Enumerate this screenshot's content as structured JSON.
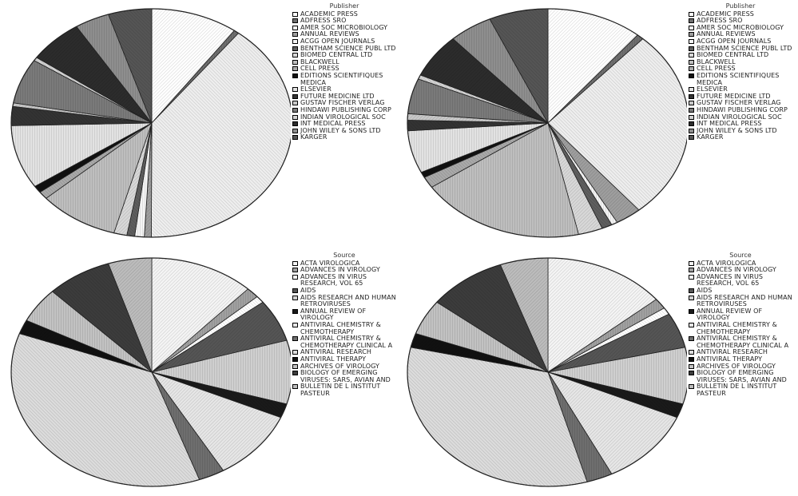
{
  "chart_data": [
    {
      "type": "pie",
      "legend_title": "Publisher",
      "legend_position": "right",
      "categories": [
        "ACADEMIC PRESS",
        "ADFRESS SRO",
        "AMER SOC MICROBIOLOGY",
        "ANNUAL REVIEWS",
        "ACGG OPEN JOURNALS",
        "BENTHAM SCIENCE PUBL LTD",
        "BIOMED CENTRAL LTD",
        "BLACKWELL",
        "CELL PRESS",
        "EDITIONS SCIENTIFIQUES MEDICA",
        "ELSEVIER",
        "FUTURE MEDICINE LTD",
        "GUSTAV FISCHER VERLAG",
        "HINDAWI PUBLISHING CORP",
        "INDIAN VIROLOGICAL SOC",
        "INT MEDICAL PRESS",
        "JOHN WILEY & SONS LTD",
        "KARGER"
      ],
      "values": [
        10.0,
        0.6,
        39.5,
        0.8,
        1.1,
        0.9,
        1.5,
        9.2,
        1.1,
        1.0,
        9.0,
        2.7,
        0.5,
        6.4,
        0.5,
        6.3,
        4.0,
        5.0
      ],
      "colors": [
        "#ffffff",
        "#6e6e6e",
        "#eeeeee",
        "#9e9e9e",
        "#f4f4f4",
        "#5e5e5e",
        "#d8d8d8",
        "#bebebe",
        "#a9a9a9",
        "#111111",
        "#e2e2e2",
        "#333333",
        "#c8c8c8",
        "#7a7a7a",
        "#d2d2d2",
        "#2c2c2c",
        "#8e8e8e",
        "#555555"
      ]
    },
    {
      "type": "pie",
      "legend_title": "Publisher",
      "legend_position": "right",
      "categories": [
        "ACADEMIC PRESS",
        "ADFRESS SRO",
        "AMER SOC MICROBIOLOGY",
        "ANNUAL REVIEWS",
        "ACGG OPEN JOURNALS",
        "BENTHAM SCIENCE PUBL LTD",
        "BIOMED CENTRAL LTD",
        "BLACKWELL",
        "CELL PRESS",
        "EDITIONS SCIENTIFIQUES MEDICA",
        "ELSEVIER",
        "FUTURE MEDICINE LTD",
        "GUSTAV FISCHER VERLAG",
        "HINDAWI PUBLISHING CORP",
        "INDIAN VIROLOGICAL SOC",
        "INT MEDICAL PRESS",
        "JOHN WILEY & SONS LTD",
        "KARGER"
      ],
      "values": [
        11.0,
        0.8,
        27.0,
        3.0,
        0.7,
        1.2,
        2.8,
        19.0,
        1.6,
        0.8,
        6.0,
        1.5,
        0.9,
        5.0,
        0.6,
        6.3,
        5.0,
        6.8
      ],
      "colors": [
        "#ffffff",
        "#6e6e6e",
        "#eeeeee",
        "#9e9e9e",
        "#f4f4f4",
        "#5e5e5e",
        "#d8d8d8",
        "#bebebe",
        "#a9a9a9",
        "#111111",
        "#e2e2e2",
        "#333333",
        "#c8c8c8",
        "#7a7a7a",
        "#d2d2d2",
        "#2c2c2c",
        "#8e8e8e",
        "#555555"
      ]
    },
    {
      "type": "pie",
      "legend_title": "Source",
      "legend_position": "right",
      "categories": [
        "ACTA VIROLOGICA",
        "ADVANCES IN VIROLOGY",
        "ADVANCES IN VIRUS RESEARCH, VOL 65",
        "AIDS",
        "AIDS RESEARCH AND HUMAN RETROVIRUSES",
        "ANNUAL REVIEW OF VIROLOGY",
        "ANTIVIRAL CHEMISTRY & CHEMOTHERAPY",
        "ANTIVIRAL CHEMISTRY & CHEMOTHERAPY CLINICAL A",
        "ANTIVIRAL RESEARCH",
        "ANTIVIRAL THERAPY",
        "ARCHIVES OF VIROLOGY",
        "BIOLOGY OF EMERGING VIRUSES: SARS, AVIAN AND",
        "BULLETIN DE L INSTITUT PASTEUR"
      ],
      "values": [
        12.0,
        1.5,
        1.0,
        6.0,
        9.0,
        2.0,
        10.0,
        3.0,
        36.0,
        2.0,
        5.0,
        7.5,
        5.0
      ],
      "colors": [
        "#f4f4f4",
        "#a0a0a0",
        "#ffffff",
        "#555555",
        "#cfcfcf",
        "#1a1a1a",
        "#e6e6e6",
        "#6e6e6e",
        "#dcdcdc",
        "#111111",
        "#c2c2c2",
        "#3c3c3c",
        "#bcbcbc"
      ]
    },
    {
      "type": "pie",
      "legend_title": "Source",
      "legend_position": "right",
      "categories": [
        "ACTA VIROLOGICA",
        "ADVANCES IN VIROLOGY",
        "ADVANCES IN VIRUS RESEARCH, VOL 65",
        "AIDS",
        "AIDS RESEARCH AND HUMAN RETROVIRUSES",
        "ANNUAL REVIEW OF VIROLOGY",
        "ANTIVIRAL CHEMISTRY & CHEMOTHERAPY",
        "ANTIVIRAL CHEMISTRY & CHEMOTHERAPY CLINICAL A",
        "ANTIVIRAL RESEARCH",
        "ANTIVIRAL THERAPY",
        "ARCHIVES OF VIROLOGY",
        "BIOLOGY OF EMERGING VIRUSES: SARS, AVIAN AND",
        "BULLETIN DE L INSTITUT PASTEUR"
      ],
      "values": [
        14.0,
        1.5,
        1.0,
        5.0,
        8.0,
        2.0,
        11.0,
        3.0,
        33.0,
        2.0,
        5.0,
        9.0,
        5.5
      ],
      "colors": [
        "#f4f4f4",
        "#a0a0a0",
        "#ffffff",
        "#555555",
        "#cfcfcf",
        "#1a1a1a",
        "#e6e6e6",
        "#6e6e6e",
        "#dcdcdc",
        "#111111",
        "#c2c2c2",
        "#3c3c3c",
        "#bcbcbc"
      ]
    }
  ]
}
